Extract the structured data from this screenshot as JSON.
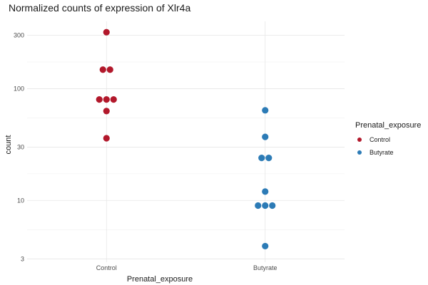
{
  "chart_data": {
    "type": "scatter",
    "title": "Normalized counts of expression of Xlr4a",
    "xlabel": "Prenatal_exposure",
    "ylabel": "count",
    "categories": [
      "Control",
      "Butyrate"
    ],
    "y_scale": "log10",
    "ylim": [
      2.8,
      400
    ],
    "yticks": [
      3,
      10,
      30,
      100,
      300
    ],
    "ytick_labels": [
      "3",
      "10",
      "30",
      "100",
      "300"
    ],
    "grid": true,
    "legend": {
      "title": "Prenatal_exposure",
      "position": "right",
      "entries": [
        "Control",
        "Butyrate"
      ]
    },
    "series": [
      {
        "name": "Control",
        "category": "Control",
        "color": "#b2182b",
        "values": [
          320,
          148,
          148,
          80,
          80,
          80,
          63,
          36
        ]
      },
      {
        "name": "Butyrate",
        "category": "Butyrate",
        "color": "#2c7bb6",
        "values": [
          64,
          37,
          24,
          24,
          12,
          9,
          9,
          9,
          3.9
        ]
      }
    ]
  }
}
